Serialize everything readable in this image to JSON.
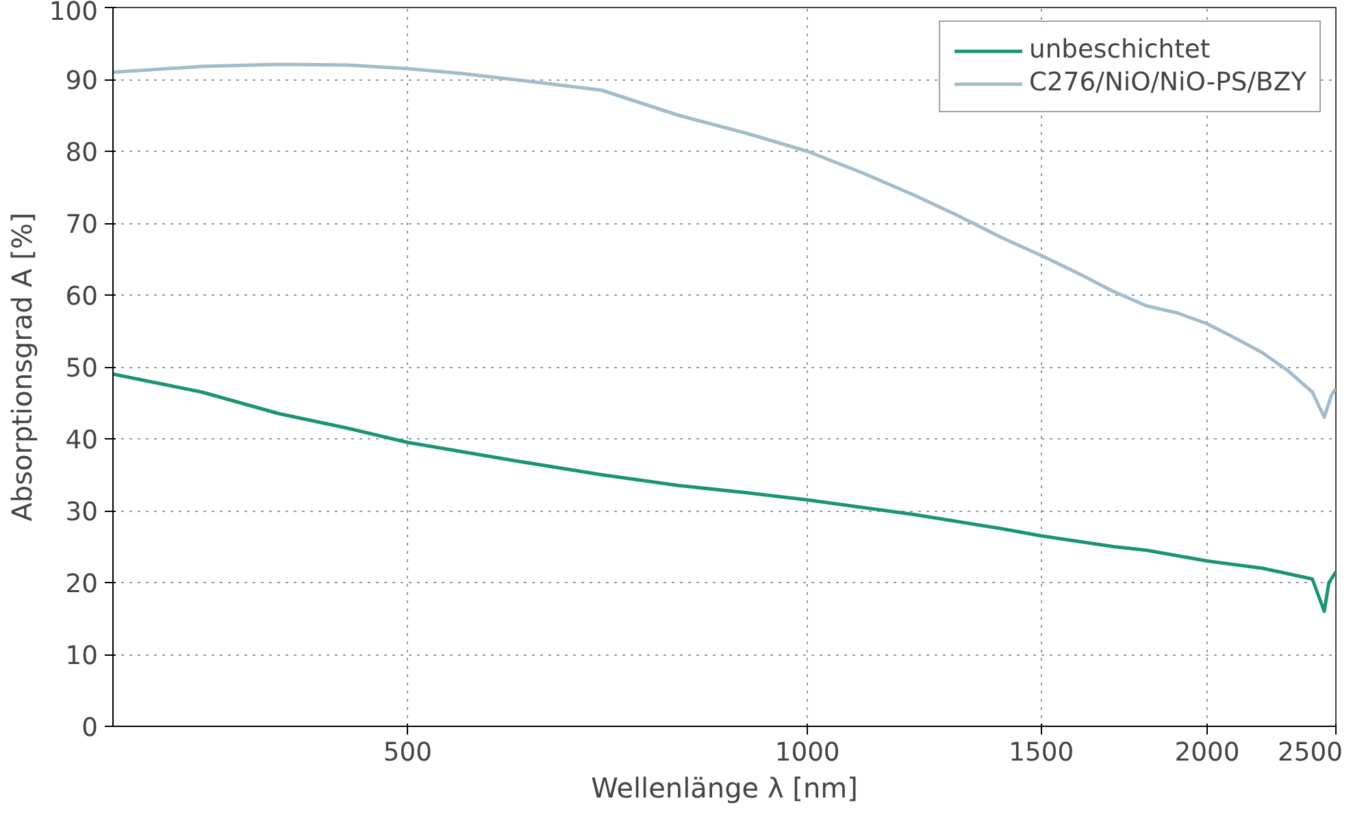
{
  "chart_data": {
    "type": "line",
    "xlabel": "Wellenlänge λ [nm]",
    "ylabel": "Absorptionsgrad A [%]",
    "log": "x",
    "xlim": [
      300,
      2500
    ],
    "xticks": [
      500,
      1000,
      1500,
      2000,
      2500
    ],
    "ylim": [
      0,
      100
    ],
    "yticks": [
      0,
      10,
      20,
      30,
      40,
      50,
      60,
      70,
      80,
      90,
      100
    ],
    "grid": true,
    "legend": "top right",
    "marker": "none",
    "line_style": "solid",
    "series": [
      {
        "name": "unbeschichtet",
        "color": "#1a9474",
        "x": [
          300,
          350,
          400,
          450,
          500,
          600,
          700,
          800,
          900,
          1000,
          1200,
          1400,
          1500,
          1700,
          1800,
          2000,
          2200,
          2400,
          2450,
          2470,
          2500
        ],
        "values": [
          49,
          46.5,
          43.5,
          41.5,
          39.5,
          37,
          35,
          33.5,
          32.5,
          31.5,
          29.5,
          27.5,
          26.5,
          25,
          24.5,
          23,
          22,
          20.5,
          16,
          20,
          21.5
        ]
      },
      {
        "name": "C276/NiO/NiO-PS/BZY",
        "color": "#a3bccc",
        "x": [
          300,
          350,
          400,
          450,
          500,
          550,
          600,
          700,
          800,
          900,
          1000,
          1100,
          1200,
          1300,
          1400,
          1500,
          1600,
          1700,
          1800,
          1900,
          2000,
          2100,
          2200,
          2300,
          2400,
          2450,
          2480,
          2500
        ],
        "values": [
          91,
          91.8,
          92.1,
          92,
          91.5,
          90.8,
          90,
          88.5,
          85,
          82.5,
          80,
          77,
          74,
          71,
          68,
          65.5,
          63,
          60.5,
          58.5,
          57.5,
          56,
          54,
          52,
          49.5,
          46.5,
          43,
          46,
          47
        ]
      }
    ]
  }
}
